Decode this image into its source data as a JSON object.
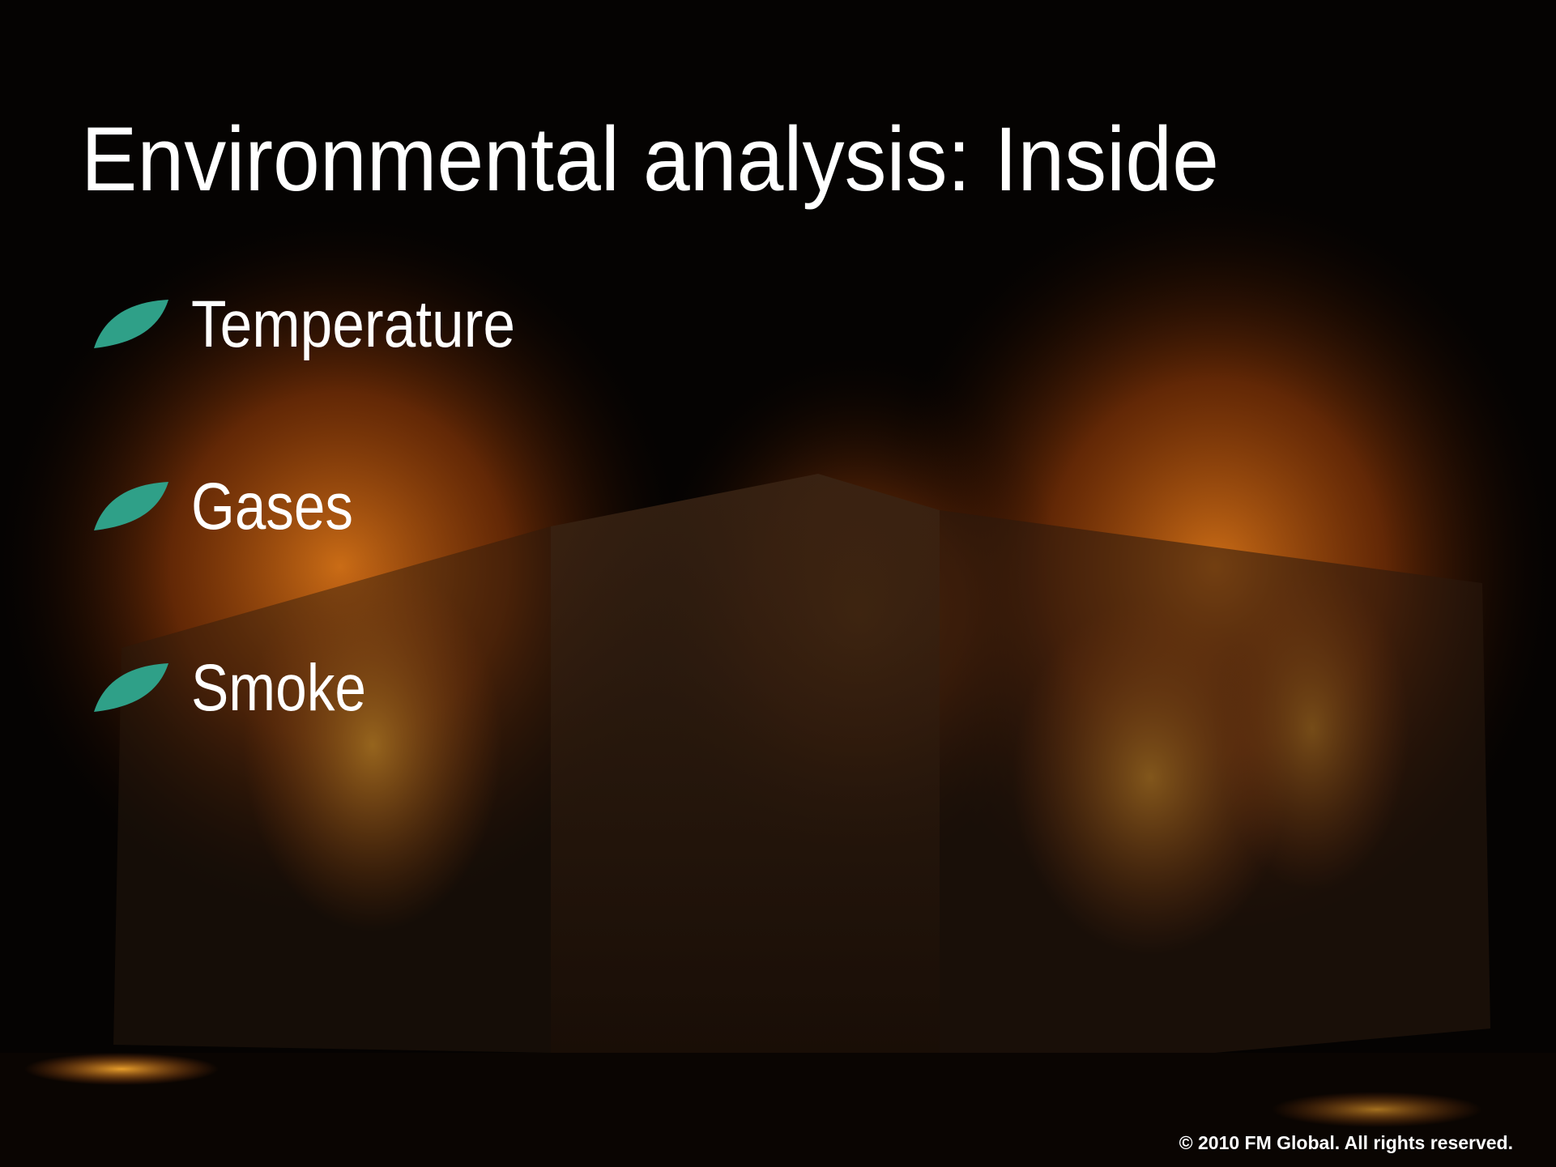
{
  "title": "Environmental analysis: Inside",
  "bullets": [
    "Temperature",
    "Gases",
    "Smoke"
  ],
  "footer": "© 2010 FM Global. All rights reserved."
}
